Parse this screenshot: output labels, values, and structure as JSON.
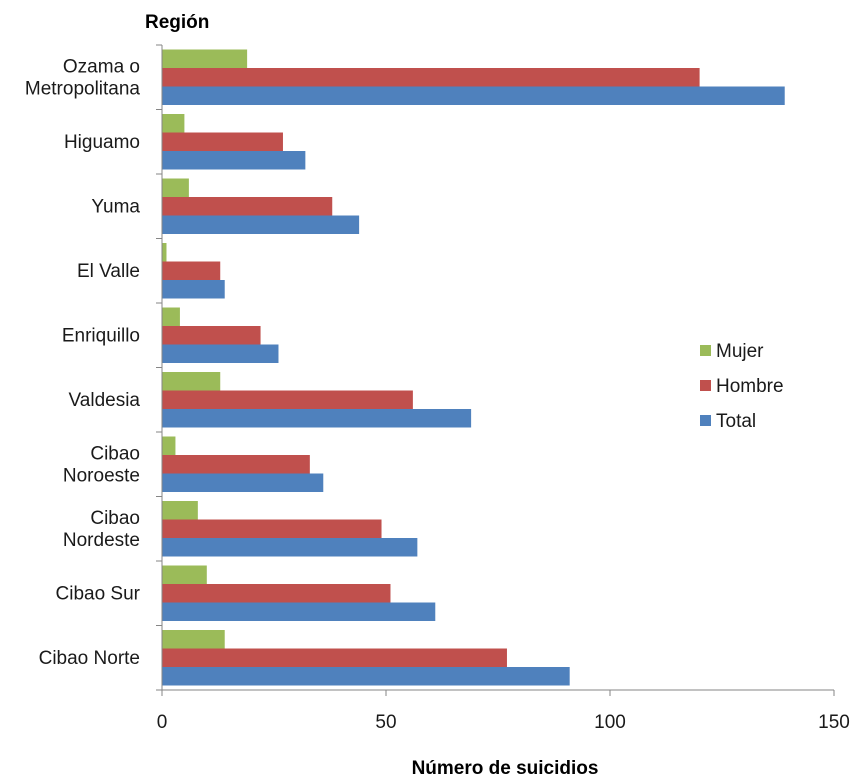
{
  "chart_data": {
    "type": "bar",
    "orientation": "horizontal",
    "ylabel": "Región",
    "xlabel": "Número de suicidios",
    "categories": [
      [
        "Ozama o",
        "Metropolitana"
      ],
      [
        "Higuamo"
      ],
      [
        "Yuma"
      ],
      [
        "El Valle"
      ],
      [
        "Enriquillo"
      ],
      [
        "Valdesia"
      ],
      [
        "Cibao",
        "Noroeste"
      ],
      [
        "Cibao",
        "Nordeste"
      ],
      [
        "Cibao Sur"
      ],
      [
        "Cibao Norte"
      ]
    ],
    "series": [
      {
        "name": "Mujer",
        "color": "#9BBB59",
        "values": [
          19,
          5,
          6,
          1,
          4,
          13,
          3,
          8,
          10,
          14
        ]
      },
      {
        "name": "Hombre",
        "color": "#C0504D",
        "values": [
          120,
          27,
          38,
          13,
          22,
          56,
          33,
          49,
          51,
          77
        ]
      },
      {
        "name": "Total",
        "color": "#4F81BD",
        "values": [
          139,
          32,
          44,
          14,
          26,
          69,
          36,
          57,
          61,
          91
        ]
      }
    ],
    "xlim": [
      0,
      150
    ],
    "xticks": [
      "0",
      "50",
      "100",
      "150"
    ],
    "xtick_values": [
      0,
      50,
      100,
      150
    ],
    "grid": false,
    "legend_position": "right",
    "legend_order": [
      "Mujer",
      "Hombre",
      "Total"
    ]
  }
}
